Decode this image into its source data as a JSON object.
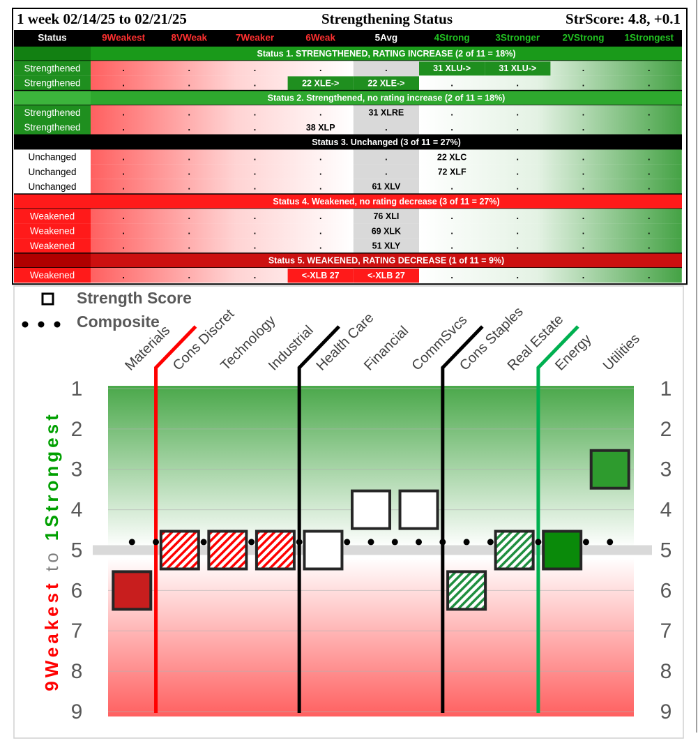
{
  "table": {
    "header": {
      "period": "1 week 02/14/25 to 02/21/25",
      "title": "Strengthening Status",
      "score": "StrScore: 4.8, +0.1"
    },
    "columns": [
      "Status",
      "9Weakest",
      "8VWeak",
      "7Weaker",
      "6Weak",
      "5Avg",
      "4Strong",
      "3Stronger",
      "2VStrong",
      "1Strongest"
    ],
    "rows": [
      {
        "section": "Status 1. STRENGTHENED, RATING INCREASE (2 of 11 = 18%)",
        "color": "#1a9a1a",
        "status_color": "#128012"
      },
      {
        "status": "Strengthened",
        "status_color": "#1f8f1f",
        "cells": [
          ".",
          ".",
          ".",
          ".",
          ".",
          "31 XLU->",
          "31 XLU->",
          ".",
          "."
        ],
        "highlight": [
          5,
          6
        ],
        "highlight_color": "#1f8f1f"
      },
      {
        "status": "Strengthened",
        "status_color": "#1f8f1f",
        "cells": [
          ".",
          ".",
          ".",
          "22 XLE->",
          "22 XLE->",
          ".",
          ".",
          ".",
          "."
        ],
        "highlight": [
          3,
          4
        ],
        "highlight_color": "#1f8f1f"
      },
      {
        "section": "Status 2. Strengthened, no rating increase (2 of 11 = 18%)",
        "color": "#2ea82e",
        "status_color": "#3cb43c"
      },
      {
        "status": "Strengthened",
        "status_color": "#1f8f1f",
        "cells": [
          ".",
          ".",
          ".",
          ".",
          "31 XLRE",
          ".",
          ".",
          ".",
          "."
        ]
      },
      {
        "status": "Strengthened",
        "status_color": "#1f8f1f",
        "cells": [
          ".",
          ".",
          ".",
          "38 XLP",
          ".",
          ".",
          ".",
          ".",
          "."
        ]
      },
      {
        "section": "Status 3. Unchanged (3 of 11 = 27%)",
        "color": "#000000",
        "status_color": "#000000"
      },
      {
        "status": "Unchanged",
        "status_color": "#ffffff",
        "cells": [
          ".",
          ".",
          ".",
          ".",
          ".",
          "22 XLC",
          ".",
          ".",
          "."
        ]
      },
      {
        "status": "Unchanged",
        "status_color": "#ffffff",
        "cells": [
          ".",
          ".",
          ".",
          ".",
          ".",
          "72 XLF",
          ".",
          ".",
          "."
        ]
      },
      {
        "status": "Unchanged",
        "status_color": "#ffffff",
        "cells": [
          ".",
          ".",
          ".",
          ".",
          "61 XLV",
          ".",
          ".",
          ".",
          "."
        ]
      },
      {
        "section": "Status 4. Weakened, no rating decrease (3 of 11 = 27%)",
        "color": "#ff1a1a",
        "status_color": "#ff1a1a"
      },
      {
        "status": "Weakened",
        "status_color": "#ff1a1a",
        "cells": [
          ".",
          ".",
          ".",
          ".",
          "76 XLI",
          ".",
          ".",
          ".",
          "."
        ]
      },
      {
        "status": "Weakened",
        "status_color": "#ff1a1a",
        "cells": [
          ".",
          ".",
          ".",
          ".",
          "69 XLK",
          ".",
          ".",
          ".",
          "."
        ]
      },
      {
        "status": "Weakened",
        "status_color": "#ff1a1a",
        "cells": [
          ".",
          ".",
          ".",
          ".",
          "51 XLY",
          ".",
          ".",
          ".",
          "."
        ]
      },
      {
        "section": "Status 5. WEAKENED, RATING DECREASE (1 of 11 = 9%)",
        "color": "#cc1010",
        "status_color": "#b00000"
      },
      {
        "status": "Weakened",
        "status_color": "#ff1a1a",
        "cells": [
          ".",
          ".",
          ".",
          "<-XLB 27",
          "<-XLB 27",
          ".",
          ".",
          ".",
          "."
        ],
        "highlight": [
          3,
          4
        ],
        "highlight_color": "#ff1a1a"
      }
    ]
  },
  "chart_data": {
    "type": "square",
    "categories": [
      "Materials",
      "Cons Discret",
      "Technology",
      "Industrial",
      "Health Care",
      "Financial",
      "CommSvcs",
      "Cons Staples",
      "Real Estate",
      "Energy",
      "Utilities"
    ],
    "series": [
      {
        "name": "Strength Score",
        "values": [
          6,
          5,
          5,
          5,
          5,
          4,
          4,
          6,
          5,
          5,
          3
        ],
        "colors": [
          "#c81e1e",
          "#ff0000",
          "#ff0000",
          "#ff0000",
          "#ffffff",
          "#ffffff",
          "#ffffff",
          "#1f8f3f",
          "#1f8f3f",
          "#0a8a0a",
          "#2e9b2e"
        ],
        "hatched": [
          false,
          true,
          true,
          true,
          false,
          false,
          false,
          true,
          true,
          false,
          false
        ]
      },
      {
        "name": "Composite",
        "value": 4.8,
        "color": "#000000"
      }
    ],
    "reference_line": 5,
    "ylim": [
      1,
      9
    ],
    "yticks": [
      1,
      2,
      3,
      4,
      5,
      6,
      7,
      8,
      9
    ],
    "inverted": true,
    "grid": true,
    "y_label": [
      {
        "text": "9Weakest",
        "color": "#ff0000"
      },
      {
        "text": "to",
        "color": "#7f7f7f"
      },
      {
        "text": "1Strongest",
        "color": "#00a000"
      }
    ]
  }
}
